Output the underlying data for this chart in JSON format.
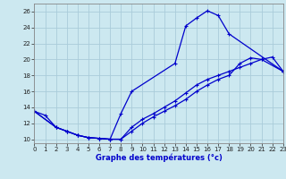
{
  "title": "Graphe des températures (°c)",
  "background_color": "#cce8f0",
  "grid_color": "#aaccda",
  "line_color": "#0000cc",
  "xlim": [
    0,
    23
  ],
  "ylim": [
    9.5,
    27
  ],
  "xticks": [
    0,
    1,
    2,
    3,
    4,
    5,
    6,
    7,
    8,
    9,
    10,
    11,
    12,
    13,
    14,
    15,
    16,
    17,
    18,
    19,
    20,
    21,
    22,
    23
  ],
  "yticks": [
    10,
    12,
    14,
    16,
    18,
    20,
    22,
    24,
    26
  ],
  "curve1_x": [
    0,
    1,
    2,
    3,
    4,
    5,
    6,
    7,
    8,
    9,
    13,
    14,
    15,
    16,
    17,
    18,
    23
  ],
  "curve1_y": [
    13.5,
    13.0,
    11.5,
    11.0,
    10.5,
    10.2,
    10.1,
    10.0,
    13.2,
    16.0,
    19.5,
    24.2,
    25.2,
    26.1,
    25.5,
    23.2,
    18.5
  ],
  "curve2_x": [
    0,
    2,
    3,
    4,
    5,
    6,
    7,
    8,
    9,
    10,
    11,
    12,
    13,
    14,
    15,
    16,
    17,
    18,
    19,
    20,
    21,
    22,
    23
  ],
  "curve2_y": [
    13.5,
    11.5,
    11.0,
    10.5,
    10.2,
    10.1,
    10.0,
    10.0,
    11.5,
    12.5,
    13.2,
    14.0,
    14.8,
    15.8,
    16.8,
    17.5,
    18.0,
    18.5,
    19.0,
    19.5,
    20.0,
    20.3,
    18.5
  ],
  "curve3_x": [
    0,
    2,
    3,
    4,
    5,
    6,
    7,
    8,
    9,
    10,
    11,
    12,
    13,
    14,
    15,
    16,
    17,
    18,
    19,
    20,
    21,
    23
  ],
  "curve3_y": [
    13.5,
    11.5,
    11.0,
    10.5,
    10.2,
    10.1,
    10.0,
    10.0,
    11.0,
    12.0,
    12.8,
    13.5,
    14.2,
    15.0,
    16.0,
    16.8,
    17.5,
    18.0,
    19.5,
    20.2,
    20.0,
    18.5
  ]
}
